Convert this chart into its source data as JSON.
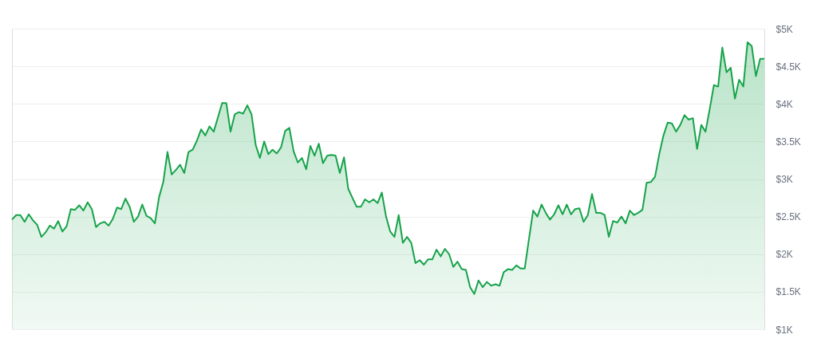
{
  "chart_data": {
    "type": "area",
    "ylim": [
      1000,
      5000
    ],
    "yticks": [
      {
        "value": 1000,
        "label": "$1K"
      },
      {
        "value": 1500,
        "label": "$1.5K"
      },
      {
        "value": 2000,
        "label": "$2K"
      },
      {
        "value": 2500,
        "label": "$2.5K"
      },
      {
        "value": 3000,
        "label": "$3K"
      },
      {
        "value": 3500,
        "label": "$3.5K"
      },
      {
        "value": 4000,
        "label": "$4K"
      },
      {
        "value": 4500,
        "label": "$4.5K"
      },
      {
        "value": 5000,
        "label": "$5K"
      }
    ],
    "grid": "y",
    "tick_labels": "y",
    "categories": [
      null,
      null,
      null,
      null,
      null,
      null,
      null,
      null,
      null,
      null,
      null,
      null,
      null,
      null,
      null,
      null,
      null,
      null,
      null,
      null,
      null,
      null,
      null,
      null,
      null,
      null,
      null,
      null,
      null,
      null,
      null,
      null,
      null,
      null,
      null,
      null,
      null,
      null,
      null,
      null,
      null,
      null,
      null,
      null,
      null,
      null,
      null,
      null,
      null,
      null,
      null,
      null,
      null,
      null,
      null,
      null,
      null,
      null,
      null,
      null,
      null,
      null,
      null,
      null,
      null,
      null,
      null,
      null,
      null,
      null,
      null,
      null,
      null,
      null,
      null,
      null,
      null,
      null,
      null,
      null,
      null,
      null,
      null,
      null,
      null,
      null,
      null,
      null,
      null,
      null,
      null,
      null,
      null,
      null,
      null,
      null,
      null,
      null,
      null,
      null,
      null,
      null,
      null,
      null,
      null,
      null,
      null,
      null,
      null,
      null,
      null,
      null,
      null,
      null,
      null,
      null,
      null,
      null,
      null,
      null,
      null,
      null,
      null,
      null,
      null,
      null,
      null,
      null,
      null,
      null,
      null,
      null,
      null,
      null,
      null,
      null,
      null,
      null,
      null,
      null,
      null,
      null,
      null,
      null,
      null,
      null,
      null,
      null,
      null,
      null,
      null,
      null,
      null,
      null,
      null,
      null,
      null,
      null,
      null,
      null,
      null,
      null,
      null,
      null,
      null,
      null,
      null,
      null,
      null,
      null,
      null,
      null,
      null,
      null,
      null,
      null,
      null,
      null,
      null,
      null
    ],
    "series": [
      {
        "color": "#16a34a",
        "values": [
          2460,
          2520,
          2520,
          2430,
          2530,
          2450,
          2390,
          2230,
          2290,
          2380,
          2340,
          2440,
          2300,
          2370,
          2600,
          2590,
          2650,
          2580,
          2690,
          2600,
          2360,
          2410,
          2430,
          2380,
          2470,
          2620,
          2600,
          2740,
          2630,
          2430,
          2500,
          2660,
          2510,
          2480,
          2410,
          2760,
          2960,
          3360,
          3060,
          3120,
          3190,
          3080,
          3360,
          3390,
          3510,
          3660,
          3580,
          3700,
          3630,
          3820,
          4010,
          4010,
          3630,
          3860,
          3890,
          3870,
          3980,
          3860,
          3450,
          3280,
          3500,
          3330,
          3390,
          3340,
          3420,
          3640,
          3680,
          3370,
          3220,
          3280,
          3130,
          3440,
          3310,
          3470,
          3210,
          3310,
          3320,
          3310,
          3080,
          3290,
          2870,
          2750,
          2630,
          2630,
          2730,
          2690,
          2730,
          2680,
          2820,
          2500,
          2300,
          2230,
          2520,
          2150,
          2230,
          2150,
          1880,
          1920,
          1860,
          1930,
          1930,
          2060,
          1970,
          2070,
          2000,
          1830,
          1900,
          1800,
          1790,
          1560,
          1470,
          1650,
          1560,
          1630,
          1580,
          1600,
          1580,
          1760,
          1800,
          1790,
          1850,
          1810,
          1810,
          2200,
          2580,
          2500,
          2660,
          2550,
          2460,
          2530,
          2650,
          2530,
          2660,
          2530,
          2600,
          2610,
          2430,
          2520,
          2800,
          2550,
          2550,
          2520,
          2230,
          2440,
          2420,
          2500,
          2410,
          2580,
          2520,
          2550,
          2590,
          2950,
          2960,
          3030,
          3330,
          3580,
          3750,
          3740,
          3630,
          3720,
          3850,
          3790,
          3810,
          3400,
          3720,
          3630,
          3930,
          4250,
          4230,
          4750,
          4420,
          4480,
          4070,
          4320,
          4230,
          4820,
          4770,
          4370,
          4600,
          4600
        ]
      }
    ]
  }
}
